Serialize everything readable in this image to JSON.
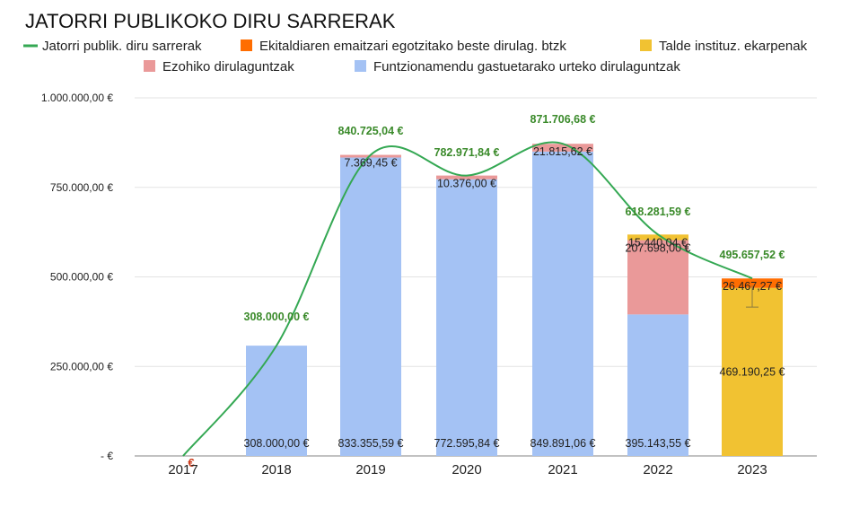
{
  "chart_data": {
    "type": "bar",
    "title": "JATORRI PUBLIKOKO DIRU SARRERAK",
    "categories": [
      "2017",
      "2018",
      "2019",
      "2020",
      "2021",
      "2022",
      "2023"
    ],
    "stacked": true,
    "ylim": [
      0,
      1000000
    ],
    "ytick_labels": [
      "-  €",
      "250.000,00 €",
      "500.000,00 €",
      "750.000,00 €",
      "1.000.000,00 €"
    ],
    "legend_position": "top",
    "grid": true,
    "series": [
      {
        "name": "Funtzionamendu gastuetarako urteko dirulaguntzak",
        "color": "#a4c2f4",
        "values": [
          0,
          308000.0,
          833355.59,
          772595.84,
          849891.06,
          395143.55,
          0
        ],
        "labels": [
          "",
          "308.000,00 €",
          "833.355,59 €",
          "772.595,84 €",
          "849.891,06 €",
          "395.143,55 €",
          ""
        ]
      },
      {
        "name": "Ezohiko dirulaguntzak",
        "color": "#ea9999",
        "values": [
          0,
          0,
          7369.45,
          10376.0,
          21815.62,
          207698.0,
          0
        ],
        "labels": [
          "",
          "",
          "7.369,45 €",
          "10.376,00 €",
          "21.815,62 €",
          "207.698,00 €",
          ""
        ]
      },
      {
        "name": "Talde instituz. ekarpenak",
        "color": "#f1c232",
        "values": [
          0,
          0,
          0,
          0,
          0,
          15440.04,
          469190.25
        ],
        "labels": [
          "",
          "",
          "",
          "",
          "",
          "15.440,04 €",
          "469.190,25 €"
        ]
      },
      {
        "name": "Ekitaldiaren emaitzari egotzitako beste dirulag. btzk",
        "color": "#ff6d01",
        "values": [
          0,
          0,
          0,
          0,
          0,
          0,
          26467.27
        ],
        "labels": [
          "",
          "",
          "",
          "",
          "",
          "",
          "26.467,27 €"
        ]
      }
    ],
    "line_series": {
      "name": "Jatorri publik. diru sarrerak",
      "color": "#34a853",
      "values": [
        0,
        308000.0,
        840725.04,
        782971.84,
        871706.68,
        618281.59,
        495657.52
      ],
      "labels": [
        "€",
        "308.000,00 €",
        "840.725,04 €",
        "782.971,84 €",
        "871.706,68 €",
        "618.281,59 €",
        "495.657,52 €"
      ]
    },
    "legend_order": [
      "Jatorri publik. diru sarrerak",
      "Ekitaldiaren emaitzari egotzitako beste dirulag. btzk",
      "Talde instituz. ekarpenak",
      "Ezohiko dirulaguntzak",
      "Funtzionamendu gastuetarako urteko dirulaguntzak"
    ]
  }
}
